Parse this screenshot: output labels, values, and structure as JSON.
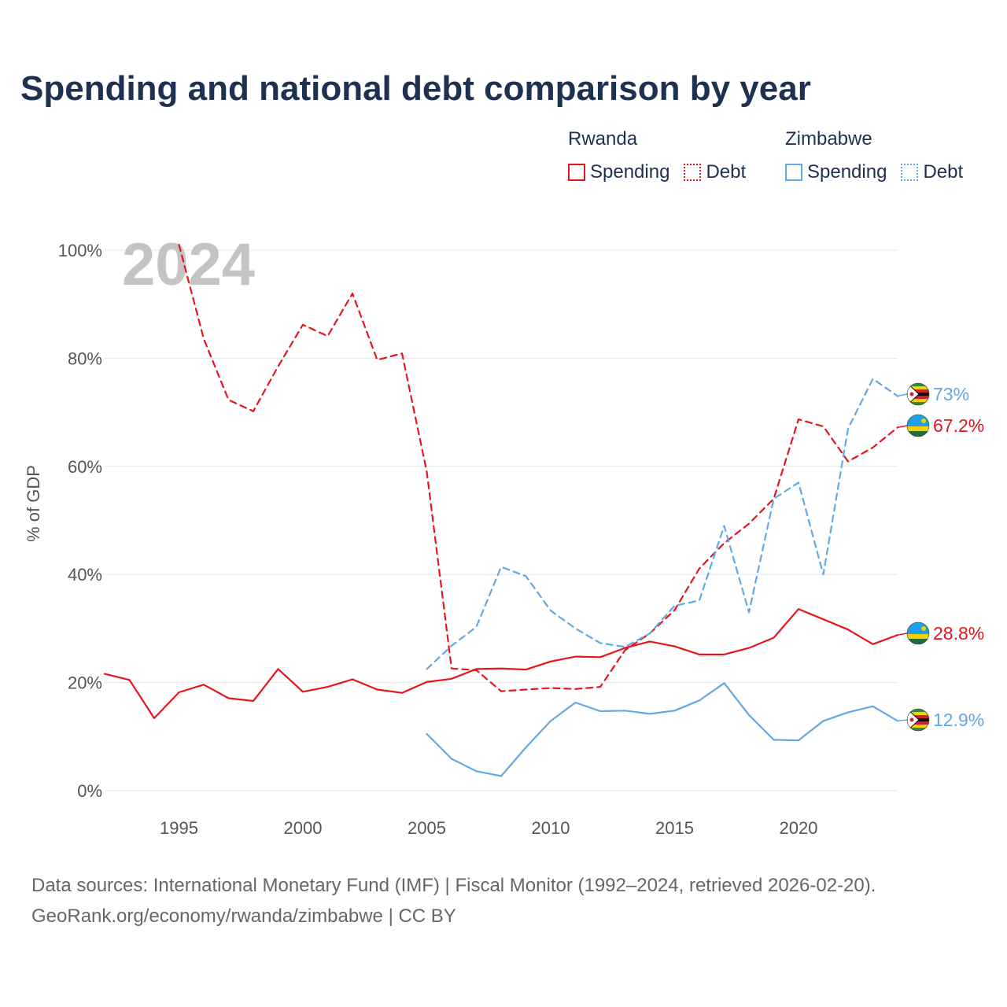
{
  "title": "Spending and national debt comparison by year",
  "legend": {
    "groups": [
      {
        "name": "Rwanda",
        "items": [
          "Spending",
          "Debt"
        ]
      },
      {
        "name": "Zimbabwe",
        "items": [
          "Spending",
          "Debt"
        ]
      }
    ]
  },
  "footer": {
    "line1": "Data sources: International Monetary Fund (IMF) | Fiscal Monitor (1992–2024, retrieved 2026-02-20).",
    "line2": "GeoRank.org/economy/rwanda/zimbabwe | CC BY"
  },
  "chart_data": {
    "type": "line",
    "title": "Spending and national debt comparison by year",
    "year_watermark": "2024",
    "ylabel": "% of GDP",
    "xlabel": "",
    "xlim": [
      1992,
      2024
    ],
    "ylim": [
      0,
      100
    ],
    "yticks": [
      0,
      20,
      40,
      60,
      80,
      100
    ],
    "ytick_labels": [
      "0%",
      "20%",
      "40%",
      "60%",
      "80%",
      "100%"
    ],
    "xticks": [
      1995,
      2000,
      2005,
      2010,
      2015,
      2020
    ],
    "xtick_labels": [
      "1995",
      "2000",
      "2005",
      "2010",
      "2015",
      "2020"
    ],
    "colors": {
      "rwanda": "#e8141b",
      "zimbabwe": "#62a8e5"
    },
    "series": [
      {
        "name": "Rwanda Spending",
        "country": "Rwanda",
        "style": "solid",
        "color": "#e8141b",
        "x": [
          1992,
          1993,
          1994,
          1995,
          1996,
          1997,
          1998,
          1999,
          2000,
          2001,
          2002,
          2003,
          2004,
          2005,
          2006,
          2007,
          2008,
          2009,
          2010,
          2011,
          2012,
          2013,
          2014,
          2015,
          2016,
          2017,
          2018,
          2019,
          2020,
          2021,
          2022,
          2023,
          2024
        ],
        "values": [
          21.6,
          20.5,
          13.4,
          18.2,
          19.6,
          17.1,
          16.6,
          22.5,
          18.3,
          19.2,
          20.6,
          18.7,
          18.1,
          20.1,
          20.7,
          22.5,
          22.6,
          22.4,
          23.9,
          24.8,
          24.7,
          26.4,
          27.6,
          26.7,
          25.2,
          25.2,
          26.4,
          28.3,
          33.6,
          31.7,
          29.8,
          27.1,
          28.8
        ],
        "end_label": "28.8%"
      },
      {
        "name": "Rwanda Debt",
        "country": "Rwanda",
        "style": "dashed",
        "color": "#e8141b",
        "x": [
          1995,
          1996,
          1997,
          1998,
          1999,
          2000,
          2001,
          2002,
          2003,
          2004,
          2005,
          2006,
          2007,
          2008,
          2009,
          2010,
          2011,
          2012,
          2013,
          2014,
          2015,
          2016,
          2017,
          2018,
          2019,
          2020,
          2021,
          2022,
          2023,
          2024
        ],
        "values": [
          101.0,
          83.6,
          72.3,
          70.2,
          78.5,
          86.2,
          84.1,
          92.0,
          79.7,
          80.9,
          59.0,
          22.6,
          22.3,
          18.4,
          18.7,
          19.0,
          18.8,
          19.2,
          26.0,
          29.1,
          33.4,
          41.1,
          45.8,
          49.4,
          54.0,
          68.7,
          67.4,
          60.9,
          63.5,
          67.2
        ],
        "end_label": "67.2%"
      },
      {
        "name": "Zimbabwe Spending",
        "country": "Zimbabwe",
        "style": "solid",
        "color": "#62a8e5",
        "x": [
          2005,
          2006,
          2007,
          2008,
          2009,
          2010,
          2011,
          2012,
          2013,
          2014,
          2015,
          2016,
          2017,
          2018,
          2019,
          2020,
          2021,
          2022,
          2023,
          2024
        ],
        "values": [
          10.5,
          5.9,
          3.6,
          2.7,
          8.0,
          12.9,
          16.3,
          14.7,
          14.8,
          14.2,
          14.8,
          16.7,
          19.9,
          14.0,
          9.4,
          9.3,
          12.9,
          14.5,
          15.6,
          12.9
        ],
        "end_label": "12.9%"
      },
      {
        "name": "Zimbabwe Debt",
        "country": "Zimbabwe",
        "style": "dashed",
        "color": "#62a8e5",
        "x": [
          2005,
          2006,
          2007,
          2008,
          2009,
          2010,
          2011,
          2012,
          2013,
          2014,
          2015,
          2016,
          2017,
          2018,
          2019,
          2020,
          2021,
          2022,
          2023,
          2024
        ],
        "values": [
          22.5,
          26.8,
          30.3,
          41.4,
          39.7,
          33.3,
          30.0,
          27.3,
          26.6,
          29.1,
          34.2,
          35.2,
          49.0,
          33.0,
          54.0,
          57.0,
          40.0,
          67.0,
          76.2,
          73.0
        ],
        "end_label": "73%"
      }
    ]
  }
}
